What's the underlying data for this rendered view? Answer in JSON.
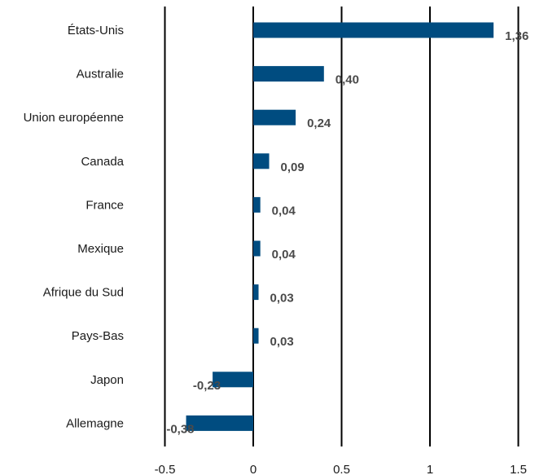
{
  "chart_data": {
    "type": "bar",
    "orientation": "horizontal",
    "categories": [
      "États-Unis",
      "Australie",
      "Union européenne",
      "Canada",
      "France",
      "Mexique",
      "Afrique du Sud",
      "Pays-Bas",
      "Japon",
      "Allemagne"
    ],
    "values": [
      1.36,
      0.4,
      0.24,
      0.09,
      0.04,
      0.04,
      0.03,
      0.03,
      -0.23,
      -0.38
    ],
    "value_labels": [
      "1,36",
      "0,40",
      "0,24",
      "0,09",
      "0,04",
      "0,04",
      "0,03",
      "0,03",
      "-0,23",
      "-0,38"
    ],
    "x_ticks": [
      -0.5,
      0,
      0.5,
      1,
      1.5
    ],
    "x_tick_labels": [
      "-0.5",
      "0",
      "0.5",
      "1",
      "1.5"
    ],
    "xlim": [
      -0.5,
      1.5
    ],
    "grid": "vertical",
    "bar_color": "#004c80",
    "label_color": "#4a4a4a",
    "legend": "none"
  }
}
